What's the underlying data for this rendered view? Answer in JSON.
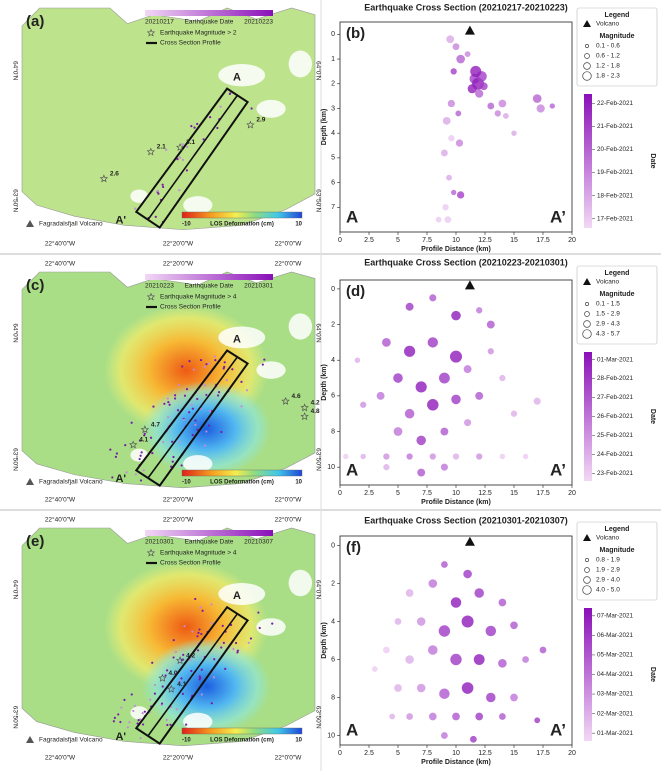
{
  "chart_data": [
    {
      "type": "scatter",
      "title": "Earthquake Cross Section (20210217-20210223)",
      "panel_label": "(b)",
      "x_label": "Profile Distance (km)",
      "y_label": "Depth (km)",
      "xlim": [
        0,
        20
      ],
      "xticks": [
        0,
        2.5,
        5,
        7.5,
        10,
        12.5,
        15,
        17.5,
        20
      ],
      "ylim": [
        8,
        -0.5
      ],
      "yticks": [
        0,
        1,
        2,
        3,
        4,
        5,
        6,
        7
      ],
      "corner_labels": [
        "A",
        "A’"
      ],
      "legend_title": "Legend",
      "volcano": {
        "name": "Volcano",
        "x": 11.2,
        "depth": -0.15
      },
      "magnitude_title": "Magnitude",
      "magnitude_bins": [
        "0.1 - 0.6",
        "0.6 - 1.2",
        "1.2 - 1.8",
        "1.8 - 2.3"
      ],
      "colorbar": {
        "label": "Date",
        "colors": [
          "#f2d8f5",
          "#8a10b8"
        ],
        "lim": [
          47.6,
          53.4
        ],
        "ticks": [
          {
            "value": 48,
            "label": "17-Feb-2021"
          },
          {
            "value": 49,
            "label": "18-Feb-2021"
          },
          {
            "value": 50,
            "label": "19-Feb-2021"
          },
          {
            "value": 51,
            "label": "20-Feb-2021"
          },
          {
            "value": 52,
            "label": "21-Feb-2021"
          },
          {
            "value": 53,
            "label": "22-Feb-2021"
          }
        ]
      },
      "points": {
        "x": [
          9.5,
          10.0,
          10.4,
          9.8,
          11.0,
          11.6,
          11.9,
          12.2,
          11.4,
          12.0,
          11.7,
          12.4,
          9.6,
          9.2,
          9.6,
          9.0,
          9.4,
          9.8,
          10.4,
          9.1,
          8.5,
          9.3,
          10.2,
          13.0,
          13.6,
          14.0,
          17.0,
          17.3,
          18.3,
          15.0,
          10.3,
          14.3
        ],
        "depth": [
          0.2,
          0.5,
          1.0,
          1.5,
          0.8,
          1.8,
          2.0,
          1.7,
          2.2,
          2.4,
          1.5,
          2.1,
          2.8,
          3.5,
          4.2,
          4.8,
          5.8,
          6.4,
          6.5,
          7.0,
          7.5,
          7.5,
          3.2,
          2.9,
          3.2,
          2.8,
          2.6,
          3.0,
          2.9,
          4.0,
          4.4,
          3.3
        ],
        "magnitude": [
          1.0,
          0.8,
          1.2,
          0.7,
          0.6,
          1.5,
          1.9,
          1.6,
          1.3,
          1.1,
          1.7,
          1.0,
          0.9,
          1.0,
          0.7,
          0.8,
          0.6,
          0.5,
          0.9,
          0.7,
          0.6,
          0.8,
          0.6,
          0.8,
          0.7,
          1.0,
          1.2,
          1.1,
          0.5,
          0.5,
          0.9,
          0.6
        ],
        "date": [
          49,
          50,
          51,
          52,
          50,
          52,
          53,
          52,
          53,
          51,
          53,
          52,
          50,
          49,
          48,
          49,
          49,
          51,
          52,
          48,
          48,
          48,
          51,
          51,
          50,
          50,
          51,
          50,
          51,
          49,
          50,
          49
        ]
      }
    },
    {
      "type": "scatter",
      "title": "Earthquake Cross Section (20210223-20210301)",
      "panel_label": "(d)",
      "x_label": "Profile Distance (km)",
      "y_label": "Depth (km)",
      "xlim": [
        0,
        20
      ],
      "xticks": [
        0,
        2.5,
        5,
        7.5,
        10,
        12.5,
        15,
        17.5,
        20
      ],
      "ylim": [
        11,
        -0.5
      ],
      "yticks": [
        0,
        2,
        4,
        6,
        8,
        10
      ],
      "corner_labels": [
        "A",
        "A’"
      ],
      "legend_title": "Legend",
      "volcano": {
        "name": "Volcano",
        "x": 11.2,
        "depth": -0.2
      },
      "magnitude_title": "Magnitude",
      "magnitude_bins": [
        "0.1 - 1.5",
        "1.5 - 2.9",
        "2.9 - 4.3",
        "4.3 - 5.7"
      ],
      "colorbar": {
        "label": "Date",
        "colors": [
          "#f2d8f5",
          "#8a10b8"
        ],
        "lim": [
          53.6,
          60.4
        ],
        "ticks": [
          {
            "value": 54,
            "label": "23-Feb-2021"
          },
          {
            "value": 55,
            "label": "24-Feb-2021"
          },
          {
            "value": 56,
            "label": "25-Feb-2021"
          },
          {
            "value": 57,
            "label": "26-Feb-2021"
          },
          {
            "value": 58,
            "label": "27-Feb-2021"
          },
          {
            "value": 59,
            "label": "28-Feb-2021"
          },
          {
            "value": 60,
            "label": "01-Mar-2021"
          }
        ]
      },
      "points": {
        "x": [
          6,
          8,
          10,
          12,
          4,
          6,
          8,
          10,
          5,
          7,
          9,
          11,
          13,
          3.5,
          6,
          8,
          10,
          12,
          14,
          5,
          7,
          9,
          11,
          4,
          7,
          9,
          0.5,
          2,
          4,
          6,
          8,
          10,
          12,
          14,
          16,
          17,
          13,
          15,
          2,
          1.5
        ],
        "depth": [
          1,
          0.5,
          1.5,
          1.2,
          3,
          3.5,
          3,
          3.8,
          5,
          5.5,
          5,
          4.5,
          3.5,
          6,
          7,
          6.5,
          6.2,
          6,
          5,
          8,
          8.5,
          8,
          7.5,
          10,
          10.3,
          10,
          9.4,
          9.4,
          9.4,
          9.4,
          9.4,
          9.4,
          9.4,
          9.4,
          9.4,
          6.3,
          2,
          7,
          6.5,
          4
        ],
        "magnitude": [
          3,
          2.5,
          4,
          2,
          3.5,
          5,
          4.5,
          5.5,
          4,
          5,
          4.8,
          3,
          2,
          3,
          4,
          5.2,
          4,
          3,
          2,
          3.5,
          4,
          3,
          2.5,
          2,
          3,
          2.5,
          1.5,
          1.5,
          2,
          2,
          2,
          2,
          2,
          1.5,
          1.5,
          2.5,
          3,
          2,
          2,
          1.5
        ],
        "date": [
          59,
          58,
          60,
          57,
          58,
          60,
          59,
          60,
          59,
          60,
          59,
          57,
          56,
          57,
          58,
          60,
          59,
          58,
          55,
          57,
          59,
          58,
          56,
          55,
          58,
          57,
          54,
          55,
          56,
          57,
          56,
          55,
          56,
          54,
          54,
          55,
          58,
          55,
          56,
          55
        ]
      }
    },
    {
      "type": "scatter",
      "title": "Earthquake Cross Section (20210301-20210307)",
      "panel_label": "(f)",
      "x_label": "Profile Distance (km)",
      "y_label": "Depth (km)",
      "xlim": [
        0,
        20
      ],
      "xticks": [
        0,
        2.5,
        5,
        7.5,
        10,
        12.5,
        15,
        17.5,
        20
      ],
      "ylim": [
        10.5,
        -0.5
      ],
      "yticks": [
        0,
        2,
        4,
        6,
        8,
        10
      ],
      "corner_labels": [
        "A",
        "A’"
      ],
      "legend_title": "Legend",
      "volcano": {
        "name": "Volcano",
        "x": 11.2,
        "depth": -0.2
      },
      "magnitude_title": "Magnitude",
      "magnitude_bins": [
        "0.8 - 1.9",
        "1.9 - 2.9",
        "2.9 - 4.0",
        "4.0 - 5.0"
      ],
      "colorbar": {
        "label": "Date",
        "colors": [
          "#f2d8f5",
          "#8a10b8"
        ],
        "lim": [
          59.6,
          66.4
        ],
        "ticks": [
          {
            "value": 60,
            "label": "01-Mar-2021"
          },
          {
            "value": 61,
            "label": "02-Mar-2021"
          },
          {
            "value": 62,
            "label": "03-Mar-2021"
          },
          {
            "value": 63,
            "label": "04-Mar-2021"
          },
          {
            "value": 64,
            "label": "05-Mar-2021"
          },
          {
            "value": 65,
            "label": "06-Mar-2021"
          },
          {
            "value": 66,
            "label": "07-Mar-2021"
          }
        ]
      },
      "points": {
        "x": [
          9,
          11,
          6,
          8,
          10,
          12,
          14,
          5,
          7,
          9,
          11,
          13,
          15,
          4,
          6,
          8,
          10,
          12,
          14,
          16,
          5,
          7,
          9,
          11,
          13,
          15,
          4.5,
          6,
          8,
          10,
          12,
          14,
          17,
          9,
          11.5,
          3,
          17.5
        ],
        "depth": [
          1,
          1.5,
          2.5,
          2,
          3,
          2.5,
          3,
          4,
          4,
          4.5,
          4,
          4.5,
          4.2,
          5.5,
          6,
          5.5,
          6,
          6,
          6.2,
          6,
          7.5,
          7.5,
          7.8,
          7.5,
          8,
          8,
          9,
          9,
          9,
          9,
          9,
          9,
          9.2,
          10,
          10.2,
          6.5,
          5.5
        ],
        "magnitude": [
          2,
          3,
          2.5,
          3,
          4,
          3.5,
          2.5,
          2,
          3,
          4.5,
          4.8,
          4,
          2.5,
          2,
          3,
          3.5,
          4.5,
          4.2,
          3,
          2,
          2.5,
          3,
          4,
          4.6,
          3.5,
          2.5,
          1.5,
          2,
          2.5,
          2.5,
          2.5,
          2,
          1.5,
          2,
          2,
          1.5,
          2
        ],
        "date": [
          64,
          65,
          61,
          63,
          66,
          65,
          64,
          61,
          62,
          65,
          66,
          65,
          64,
          60,
          61,
          63,
          65,
          66,
          64,
          63,
          61,
          62,
          64,
          66,
          65,
          63,
          61,
          62,
          63,
          64,
          65,
          64,
          65,
          63,
          65,
          60,
          64
        ]
      }
    }
  ],
  "maps": [
    {
      "panel_label": "(a)",
      "lon_labels_bottom": [
        "22°40'0\"W",
        "22°20'0\"W",
        "22°0'0\"W"
      ],
      "lat_labels": [
        "64°0'N",
        "63°50'N"
      ],
      "date_start": "20210217",
      "date_title": "Earthquake Date",
      "date_end": "20210223",
      "magnitude_label": "Earthquake Magnitude > 2",
      "profile_label": "Cross Section Profile",
      "volcano_label": "Fagradalsfjall Volcano",
      "los_min": "-10",
      "los_label": "LOS Deformation (cm)",
      "los_max": "10",
      "profile_ends": [
        "A",
        "A'"
      ],
      "annotations": [
        "2.1",
        "3.1",
        "2.9",
        "2.6"
      ]
    },
    {
      "panel_label": "(c)",
      "lon_labels_top": [
        "22°40'0\"W",
        "22°20'0\"W",
        "22°0'0\"W"
      ],
      "lon_labels_bottom": [
        "22°40'0\"W",
        "22°20'0\"W",
        "22°0'0\"W"
      ],
      "lat_labels": [
        "64°0'N",
        "63°50'N"
      ],
      "date_start": "20210223",
      "date_title": "Earthquake Date",
      "date_end": "20210301",
      "magnitude_label": "Earthquake Magnitude > 4",
      "profile_label": "Cross Section Profile",
      "volcano_label": "Fagradalsfjall Volcano",
      "los_min": "-10",
      "los_label": "LOS Deformation (cm)",
      "los_max": "10",
      "profile_ends": [
        "A",
        "A'"
      ],
      "annotations": [
        "4.6",
        "4.2",
        "4.8",
        "4.7",
        "4.1"
      ]
    },
    {
      "panel_label": "(e)",
      "lon_labels_top": [
        "22°40'0\"W",
        "22°20'0\"W",
        "22°0'0\"W"
      ],
      "lon_labels_bottom": [
        "22°40'0\"W",
        "22°20'0\"W",
        "22°0'0\"W"
      ],
      "lat_labels": [
        "64°0'N",
        "63°50'N"
      ],
      "date_start": "20210301",
      "date_title": "Earthquake Date",
      "date_end": "20210307",
      "magnitude_label": "Earthquake Magnitude > 4",
      "profile_label": "Cross Section Profile",
      "volcano_label": "Fagradalsfjall Volcano",
      "los_min": "-10",
      "los_label": "LOS Deformation (cm)",
      "los_max": "10",
      "profile_ends": [
        "A",
        "A'"
      ],
      "annotations": [
        "4.2",
        "4.0",
        "4.1"
      ]
    }
  ]
}
